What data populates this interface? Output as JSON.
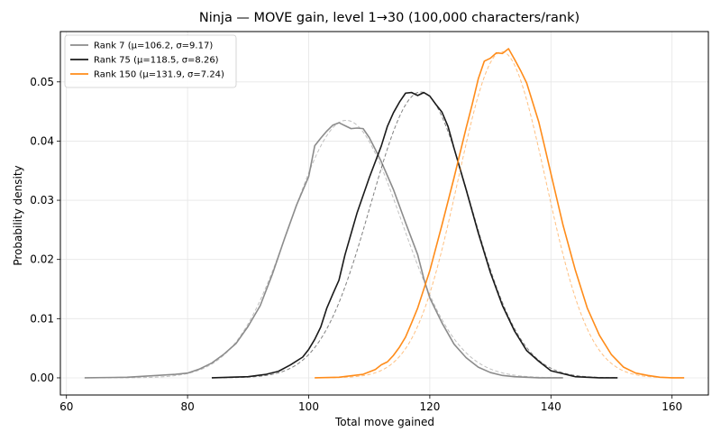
{
  "chart_data": {
    "type": "line",
    "title": "Ninja — MOVE gain, level 1→30 (100,000 characters/rank)",
    "xlabel": "Total move gained",
    "ylabel": "Probability density",
    "xlim": [
      59,
      166
    ],
    "ylim": [
      -0.0029,
      0.0585
    ],
    "xticks": [
      60,
      80,
      100,
      120,
      140,
      160
    ],
    "yticks": [
      0.0,
      0.01,
      0.02,
      0.03,
      0.04,
      0.05
    ],
    "ytick_labels": [
      "0.00",
      "0.01",
      "0.02",
      "0.03",
      "0.04",
      "0.05"
    ],
    "grid": true,
    "legend_position": "top-left",
    "series": [
      {
        "name": "Rank 7 (μ=106.2, σ=9.17)",
        "color": "#8c8c8c",
        "fit": {
          "mu": 106.2,
          "sigma": 9.17
        },
        "x": [
          63,
          70,
          75,
          78,
          80,
          82,
          84,
          86,
          88,
          90,
          92,
          94,
          96,
          98,
          100,
          101,
          102,
          103,
          104,
          105,
          106,
          107,
          108,
          109,
          110,
          111,
          112,
          114,
          116,
          118,
          119,
          120,
          122,
          124,
          126,
          128,
          130,
          132,
          134,
          136,
          138,
          140,
          142
        ],
        "y": [
          0.0,
          0.0001,
          0.0004,
          0.0006,
          0.0008,
          0.0015,
          0.0025,
          0.004,
          0.0058,
          0.0087,
          0.0122,
          0.0175,
          0.0235,
          0.0292,
          0.034,
          0.0392,
          0.0405,
          0.0417,
          0.0427,
          0.0431,
          0.0426,
          0.0421,
          0.0422,
          0.0421,
          0.0406,
          0.0386,
          0.0365,
          0.0318,
          0.0262,
          0.0208,
          0.0168,
          0.0135,
          0.0093,
          0.0057,
          0.0034,
          0.0018,
          0.0009,
          0.0004,
          0.0002,
          0.0001,
          0.0,
          0.0,
          0.0
        ]
      },
      {
        "name": "Rank 75 (μ=118.5, σ=8.26)",
        "color": "#1a1a1a",
        "fit": {
          "mu": 118.5,
          "sigma": 8.26
        },
        "x": [
          84,
          90,
          93,
          95,
          97,
          99,
          100,
          101,
          102,
          103,
          104,
          105,
          106,
          108,
          110,
          112,
          113,
          114,
          115,
          116,
          117,
          118,
          119,
          120,
          121,
          122,
          123,
          124,
          126,
          128,
          130,
          132,
          134,
          136,
          138,
          140,
          142,
          144,
          146,
          148,
          151
        ],
        "y": [
          0.0,
          0.0002,
          0.0006,
          0.0011,
          0.0022,
          0.0035,
          0.0048,
          0.0065,
          0.0086,
          0.0118,
          0.0142,
          0.0165,
          0.0208,
          0.0279,
          0.0338,
          0.0392,
          0.0425,
          0.0448,
          0.0466,
          0.0481,
          0.0482,
          0.0477,
          0.0482,
          0.0476,
          0.0462,
          0.0449,
          0.0425,
          0.0388,
          0.0318,
          0.0245,
          0.0178,
          0.0122,
          0.0079,
          0.0046,
          0.0028,
          0.0012,
          0.0007,
          0.0002,
          0.0001,
          0.0,
          0.0
        ]
      },
      {
        "name": "Rank 150 (μ=131.9, σ=7.24)",
        "color": "#ff8c1a",
        "fit": {
          "mu": 131.9,
          "sigma": 7.24
        },
        "x": [
          101,
          105,
          109,
          111,
          112,
          113,
          114,
          115,
          116,
          117,
          118,
          120,
          122,
          124,
          126,
          127,
          128,
          129,
          130,
          131,
          132,
          133,
          134,
          135,
          136,
          137,
          138,
          139,
          140,
          142,
          144,
          146,
          148,
          150,
          152,
          154,
          156,
          158,
          160,
          162
        ],
        "y": [
          0.0,
          0.0001,
          0.0006,
          0.0014,
          0.0022,
          0.0027,
          0.0038,
          0.0052,
          0.0069,
          0.0093,
          0.0118,
          0.0181,
          0.0258,
          0.0338,
          0.0422,
          0.0462,
          0.0505,
          0.0535,
          0.054,
          0.0549,
          0.0548,
          0.0556,
          0.0538,
          0.0519,
          0.0498,
          0.0465,
          0.0432,
          0.0389,
          0.0345,
          0.0258,
          0.0183,
          0.0118,
          0.0072,
          0.0039,
          0.0018,
          0.0008,
          0.0004,
          0.0001,
          0.0,
          0.0
        ]
      }
    ]
  }
}
